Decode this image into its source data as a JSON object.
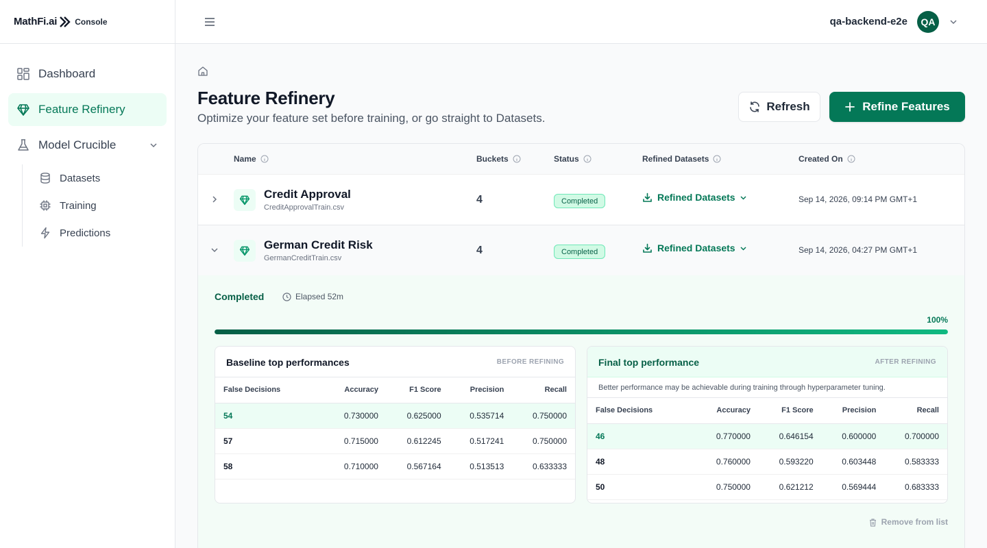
{
  "brand": {
    "name": "MathFi.ai",
    "product": "Console"
  },
  "sidebar": {
    "items": [
      {
        "label": "Dashboard",
        "icon": "grid-icon"
      },
      {
        "label": "Feature Refinery",
        "icon": "gem-icon",
        "active": true
      },
      {
        "label": "Model Crucible",
        "icon": "flask-icon",
        "expanded": true
      }
    ],
    "subitems": [
      {
        "label": "Datasets",
        "icon": "database-icon"
      },
      {
        "label": "Training",
        "icon": "chip-icon"
      },
      {
        "label": "Predictions",
        "icon": "lightning-icon"
      }
    ]
  },
  "topbar": {
    "user": "qa-backend-e2e",
    "avatar_initials": "QA"
  },
  "page": {
    "title": "Feature Refinery",
    "subtitle": "Optimize your feature set before training, or go straight to Datasets.",
    "refresh_label": "Refresh",
    "refine_label": "Refine Features"
  },
  "table": {
    "columns": [
      "Name",
      "Buckets",
      "Status",
      "Refined Datasets",
      "Created On"
    ],
    "rows": [
      {
        "name": "Credit Approval",
        "file": "CreditApprovalTrain.csv",
        "buckets": "4",
        "status": "Completed",
        "refined": "Refined Datasets",
        "created": "Sep 14, 2026, 09:14 PM GMT+1"
      },
      {
        "name": "German Credit Risk",
        "file": "GermanCreditTrain.csv",
        "buckets": "4",
        "status": "Completed",
        "refined": "Refined Datasets",
        "created": "Sep 14, 2026, 04:27 PM GMT+1"
      }
    ]
  },
  "details": {
    "status": "Completed",
    "elapsed": "Elapsed 52m",
    "progress_percent": 100,
    "progress_label": "100%",
    "remove_label": "Remove from list",
    "baseline": {
      "title": "Baseline top performances",
      "tag": "BEFORE REFINING",
      "columns": [
        "False Decisions",
        "Accuracy",
        "F1 Score",
        "Precision",
        "Recall"
      ],
      "rows": [
        [
          "54",
          "0.730000",
          "0.625000",
          "0.535714",
          "0.750000"
        ],
        [
          "57",
          "0.715000",
          "0.612245",
          "0.517241",
          "0.750000"
        ],
        [
          "58",
          "0.710000",
          "0.567164",
          "0.513513",
          "0.633333"
        ]
      ]
    },
    "final": {
      "title": "Final top performance",
      "tag": "AFTER REFINING",
      "note": "Better performance may be achievable during training through hyperparameter tuning.",
      "columns": [
        "False Decisions",
        "Accuracy",
        "F1 Score",
        "Precision",
        "Recall"
      ],
      "rows": [
        [
          "46",
          "0.770000",
          "0.646154",
          "0.600000",
          "0.700000"
        ],
        [
          "48",
          "0.760000",
          "0.593220",
          "0.603448",
          "0.583333"
        ],
        [
          "50",
          "0.750000",
          "0.621212",
          "0.569444",
          "0.683333"
        ]
      ]
    }
  },
  "colors": {
    "accent": "#047857",
    "accent_light": "#ecfdf5",
    "badge_bg": "#d1fae5"
  }
}
